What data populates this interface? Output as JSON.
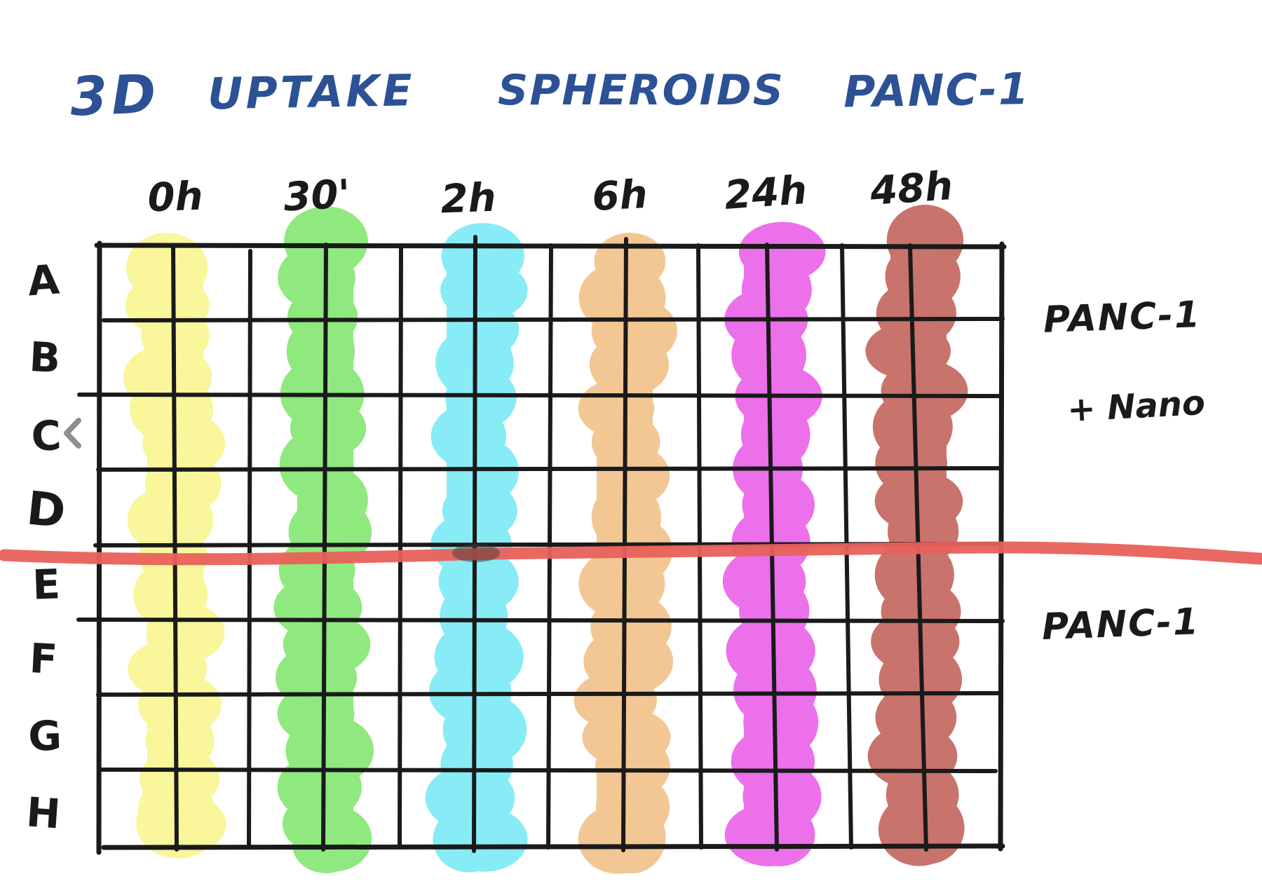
{
  "title": {
    "color": "#2C5195",
    "words": [
      "3D",
      "UPTAKE",
      "SPHEROIDS",
      "PANC-1"
    ]
  },
  "plate": {
    "column_headers": [
      "0h",
      "30'",
      "2h",
      "6h",
      "24h",
      "48h"
    ],
    "row_labels": [
      "A",
      "B",
      "C",
      "D",
      "E",
      "F",
      "G",
      "H"
    ],
    "rows": 8,
    "columns": 12,
    "stripes": [
      {
        "time": "0h",
        "color": "#F9F69B"
      },
      {
        "time": "30'",
        "color": "#8FE97E"
      },
      {
        "time": "2h",
        "color": "#87ECF5"
      },
      {
        "time": "6h",
        "color": "#F2C794"
      },
      {
        "time": "24h",
        "color": "#EC70EA"
      },
      {
        "time": "48h",
        "color": "#C8736C"
      }
    ]
  },
  "sections": {
    "top_right": {
      "line1": "PANC-1",
      "line2": "+ Nano"
    },
    "bottom_right": {
      "line1": "PANC-1"
    }
  },
  "divider": {
    "color": "#E8615A"
  },
  "ink": {
    "color": "#1A1A1A"
  },
  "ui": {
    "chevron_color": "#8F8F8F"
  }
}
